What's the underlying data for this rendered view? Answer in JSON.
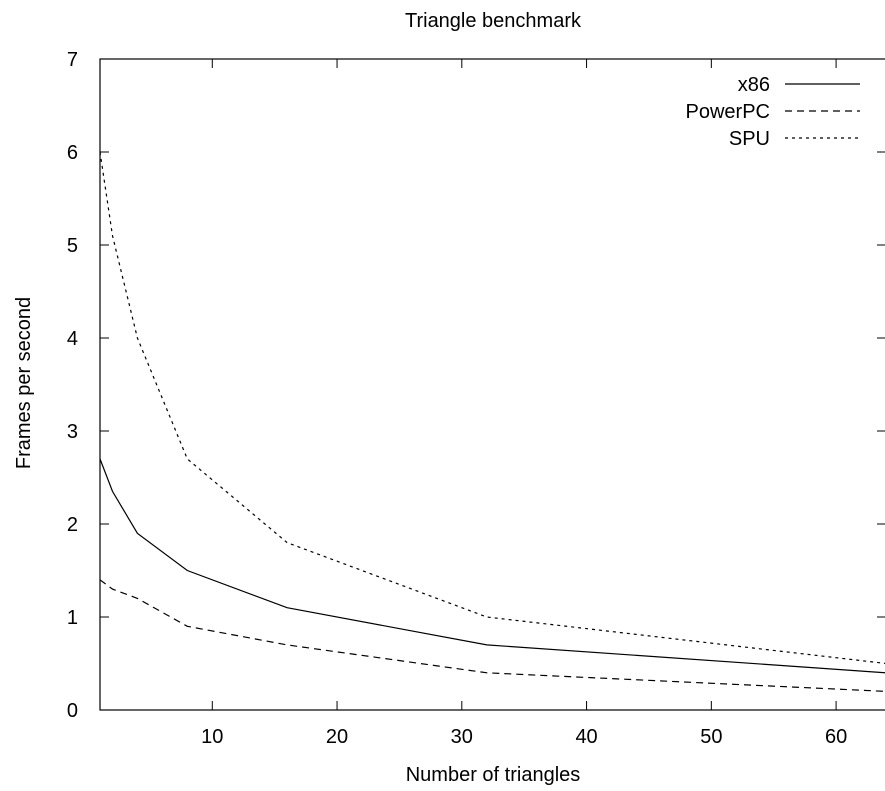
{
  "chart_data": {
    "type": "line",
    "title": "Triangle benchmark",
    "xlabel": "Number of triangles",
    "ylabel": "Frames per second",
    "xlim": [
      1,
      64
    ],
    "ylim": [
      0,
      7
    ],
    "xticks": [
      10,
      20,
      30,
      40,
      50,
      60
    ],
    "yticks": [
      0,
      1,
      2,
      3,
      4,
      5,
      6,
      7
    ],
    "grid": false,
    "legend_position": "top-right",
    "series": [
      {
        "name": "x86",
        "dash": "solid",
        "x": [
          1,
          2,
          4,
          8,
          16,
          32,
          64
        ],
        "y": [
          2.7,
          2.35,
          1.9,
          1.5,
          1.1,
          0.7,
          0.4
        ]
      },
      {
        "name": "PowerPC",
        "dash": "dashed",
        "x": [
          1,
          2,
          4,
          8,
          16,
          32,
          64
        ],
        "y": [
          1.4,
          1.3,
          1.2,
          0.9,
          0.7,
          0.4,
          0.2
        ]
      },
      {
        "name": "SPU",
        "dash": "dotted",
        "x": [
          1,
          2,
          4,
          8,
          16,
          32,
          64
        ],
        "y": [
          6.0,
          5.1,
          4.0,
          2.7,
          1.8,
          1.0,
          0.5
        ]
      }
    ]
  }
}
